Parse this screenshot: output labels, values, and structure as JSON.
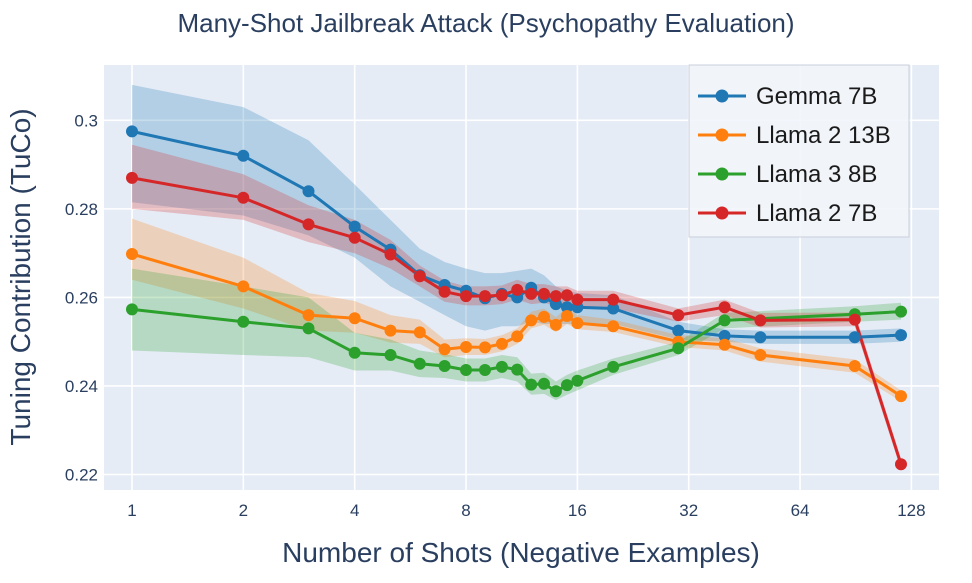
{
  "chart_data": {
    "type": "line",
    "title": "Many-Shot Jailbreak Attack (Psychopathy Evaluation)",
    "xlabel": "Number of Shots (Negative Examples)",
    "ylabel": "Tuning Contribution (TuCo)",
    "xscale": "log2",
    "xlim": [
      0.84,
      152
    ],
    "ylim": [
      0.2165,
      0.3125
    ],
    "xticks": [
      1,
      2,
      4,
      8,
      16,
      32,
      64,
      128
    ],
    "xtick_labels": [
      "1",
      "2",
      "4",
      "8",
      "16",
      "32",
      "64",
      "128"
    ],
    "yticks": [
      0.22,
      0.24,
      0.26,
      0.28,
      0.3
    ],
    "ytick_labels": [
      "0.22",
      "0.24",
      "0.26",
      "0.28",
      "0.3"
    ],
    "legend_position": "top-right",
    "grid": true,
    "series": [
      {
        "name": "Gemma 7B",
        "color": "#1f77b4",
        "x": [
          1,
          2,
          3,
          4,
          5,
          6,
          7,
          8,
          9,
          10,
          11,
          12,
          13,
          14,
          15,
          16,
          20,
          30,
          40,
          50,
          90,
          120
        ],
        "y": [
          0.2975,
          0.292,
          0.284,
          0.276,
          0.2708,
          0.265,
          0.2628,
          0.2615,
          0.2598,
          0.2608,
          0.26,
          0.2622,
          0.26,
          0.2585,
          0.2578,
          0.2578,
          0.2575,
          0.2525,
          0.2513,
          0.251,
          0.251,
          0.2515
        ],
        "lower": [
          0.2815,
          0.2785,
          0.274,
          0.269,
          0.2625,
          0.259,
          0.256,
          0.2535,
          0.2525,
          0.2535,
          0.2535,
          0.2545,
          0.254,
          0.254,
          0.254,
          0.254,
          0.254,
          0.2505,
          0.25,
          0.2495,
          0.2495,
          0.25
        ],
        "upper": [
          0.308,
          0.303,
          0.2955,
          0.2855,
          0.2775,
          0.271,
          0.268,
          0.2665,
          0.2655,
          0.2655,
          0.266,
          0.2665,
          0.265,
          0.2625,
          0.2615,
          0.261,
          0.2605,
          0.2545,
          0.2528,
          0.2525,
          0.2525,
          0.253
        ]
      },
      {
        "name": "Llama 2 13B",
        "color": "#ff7f0e",
        "x": [
          1,
          2,
          3,
          4,
          5,
          6,
          7,
          8,
          9,
          10,
          11,
          12,
          13,
          14,
          15,
          16,
          20,
          30,
          40,
          50,
          90,
          120
        ],
        "y": [
          0.2698,
          0.2625,
          0.256,
          0.2553,
          0.2525,
          0.2521,
          0.2483,
          0.2488,
          0.2487,
          0.2495,
          0.2512,
          0.2548,
          0.2556,
          0.2538,
          0.2558,
          0.2542,
          0.2535,
          0.25,
          0.2493,
          0.247,
          0.2445,
          0.2377
        ],
        "lower": [
          0.264,
          0.2575,
          0.2525,
          0.252,
          0.2498,
          0.2495,
          0.2465,
          0.247,
          0.247,
          0.2478,
          0.2495,
          0.253,
          0.2538,
          0.2522,
          0.254,
          0.2528,
          0.2522,
          0.2488,
          0.248,
          0.2455,
          0.243,
          0.2365
        ],
        "upper": [
          0.2778,
          0.269,
          0.261,
          0.2592,
          0.256,
          0.255,
          0.2505,
          0.2508,
          0.2506,
          0.2515,
          0.253,
          0.2568,
          0.2575,
          0.2555,
          0.2578,
          0.256,
          0.255,
          0.2515,
          0.2508,
          0.2485,
          0.246,
          0.239
        ]
      },
      {
        "name": "Llama 3 8B",
        "color": "#2ca02c",
        "x": [
          1,
          2,
          3,
          4,
          5,
          6,
          7,
          8,
          9,
          10,
          11,
          12,
          13,
          14,
          15,
          16,
          20,
          30,
          40,
          90,
          120
        ],
        "y": [
          0.2573,
          0.2545,
          0.253,
          0.2475,
          0.247,
          0.245,
          0.2445,
          0.2436,
          0.2436,
          0.2443,
          0.2437,
          0.2403,
          0.2405,
          0.2388,
          0.2402,
          0.2412,
          0.2443,
          0.2485,
          0.2548,
          0.2562,
          0.2568
        ],
        "lower": [
          0.248,
          0.247,
          0.2465,
          0.2435,
          0.2435,
          0.242,
          0.2418,
          0.241,
          0.241,
          0.2418,
          0.241,
          0.238,
          0.2382,
          0.2368,
          0.238,
          0.239,
          0.2425,
          0.247,
          0.253,
          0.2545,
          0.255
        ],
        "upper": [
          0.2665,
          0.2625,
          0.26,
          0.252,
          0.2505,
          0.248,
          0.2472,
          0.2462,
          0.2462,
          0.247,
          0.2465,
          0.2428,
          0.243,
          0.241,
          0.2425,
          0.2435,
          0.2462,
          0.25,
          0.2565,
          0.258,
          0.2588
        ]
      },
      {
        "name": "Llama 2 7B",
        "color": "#d62728",
        "x": [
          1,
          2,
          3,
          4,
          5,
          6,
          7,
          8,
          9,
          10,
          11,
          12,
          13,
          14,
          15,
          16,
          20,
          30,
          40,
          50,
          90,
          120
        ],
        "y": [
          0.287,
          0.2825,
          0.2765,
          0.2735,
          0.2697,
          0.2648,
          0.2613,
          0.2603,
          0.2603,
          0.2605,
          0.2617,
          0.2608,
          0.2608,
          0.2603,
          0.2605,
          0.2595,
          0.2595,
          0.256,
          0.2578,
          0.2548,
          0.255,
          0.2223
        ],
        "lower": [
          0.28,
          0.2775,
          0.2725,
          0.27,
          0.2665,
          0.2625,
          0.259,
          0.2582,
          0.2582,
          0.2585,
          0.2595,
          0.2585,
          0.2588,
          0.258,
          0.2585,
          0.2575,
          0.2575,
          0.2545,
          0.256,
          0.2532,
          0.2535,
          0.221
        ],
        "upper": [
          0.2945,
          0.2878,
          0.2808,
          0.2775,
          0.273,
          0.2672,
          0.2638,
          0.2625,
          0.2625,
          0.2627,
          0.264,
          0.263,
          0.263,
          0.2625,
          0.2625,
          0.2615,
          0.2615,
          0.2575,
          0.2595,
          0.2565,
          0.2566,
          0.2236
        ]
      }
    ]
  }
}
